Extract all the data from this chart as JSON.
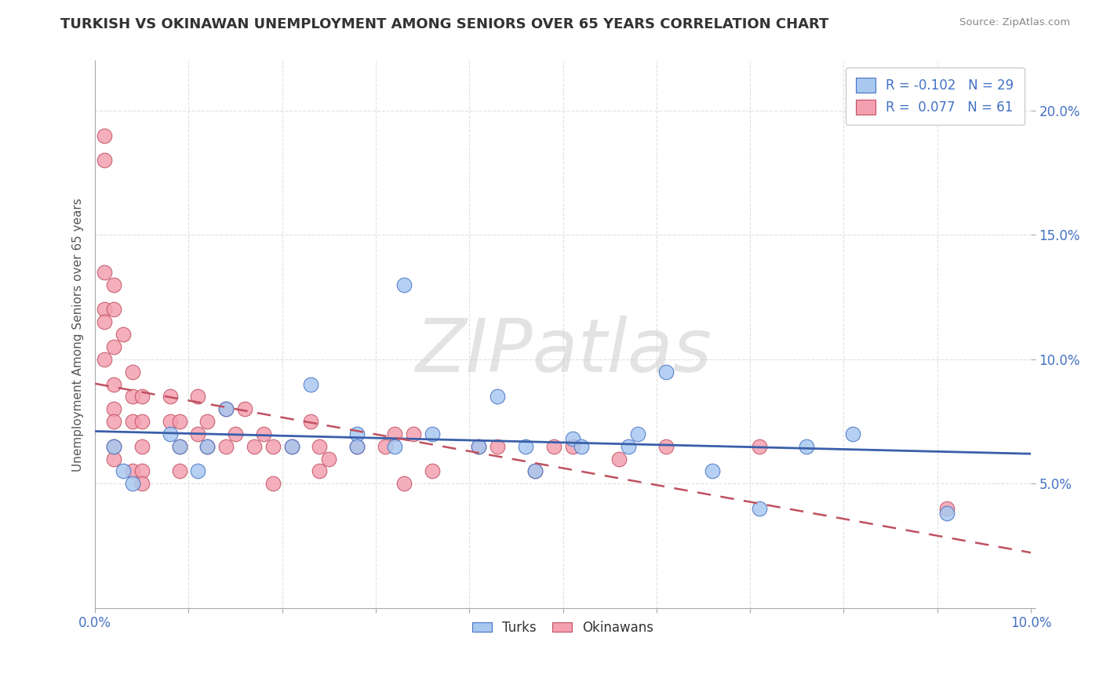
{
  "title": "TURKISH VS OKINAWAN UNEMPLOYMENT AMONG SENIORS OVER 65 YEARS CORRELATION CHART",
  "source": "Source: ZipAtlas.com",
  "ylabel": "Unemployment Among Seniors over 65 years",
  "xlim": [
    0.0,
    0.1
  ],
  "ylim": [
    0.0,
    0.22
  ],
  "xticks": [
    0.0,
    0.01,
    0.02,
    0.03,
    0.04,
    0.05,
    0.06,
    0.07,
    0.08,
    0.09,
    0.1
  ],
  "yticks": [
    0.0,
    0.05,
    0.1,
    0.15,
    0.2
  ],
  "xtick_labels_show": [
    "0.0%",
    "",
    "",
    "",
    "",
    "",
    "",
    "",
    "",
    "",
    "10.0%"
  ],
  "ytick_labels": [
    "",
    "5.0%",
    "10.0%",
    "15.0%",
    "20.0%"
  ],
  "turks_color": "#A8C8F0",
  "okinawans_color": "#F4A0B0",
  "turks_edge_color": "#4472C4",
  "okinawans_edge_color": "#C05060",
  "turks_line_color": "#3A5FAA",
  "okinawans_line_color": "#C05060",
  "legend_R_turks": "-0.102",
  "legend_N_turks": "29",
  "legend_R_okinawans": "0.077",
  "legend_N_okinawans": "61",
  "watermark": "ZIPatlas",
  "turks_x": [
    0.002,
    0.003,
    0.004,
    0.008,
    0.009,
    0.011,
    0.012,
    0.014,
    0.021,
    0.023,
    0.028,
    0.028,
    0.032,
    0.033,
    0.036,
    0.041,
    0.043,
    0.046,
    0.047,
    0.051,
    0.052,
    0.057,
    0.058,
    0.061,
    0.066,
    0.071,
    0.076,
    0.081,
    0.091
  ],
  "turks_y": [
    0.065,
    0.055,
    0.05,
    0.07,
    0.065,
    0.055,
    0.065,
    0.08,
    0.065,
    0.09,
    0.07,
    0.065,
    0.065,
    0.13,
    0.07,
    0.065,
    0.085,
    0.065,
    0.055,
    0.068,
    0.065,
    0.065,
    0.07,
    0.095,
    0.055,
    0.04,
    0.065,
    0.07,
    0.038
  ],
  "okinawans_x": [
    0.001,
    0.001,
    0.001,
    0.001,
    0.001,
    0.001,
    0.002,
    0.002,
    0.002,
    0.002,
    0.002,
    0.002,
    0.002,
    0.002,
    0.003,
    0.004,
    0.004,
    0.004,
    0.004,
    0.005,
    0.005,
    0.005,
    0.005,
    0.005,
    0.008,
    0.008,
    0.009,
    0.009,
    0.009,
    0.011,
    0.011,
    0.012,
    0.012,
    0.014,
    0.014,
    0.015,
    0.016,
    0.017,
    0.018,
    0.019,
    0.019,
    0.021,
    0.023,
    0.024,
    0.024,
    0.025,
    0.028,
    0.031,
    0.032,
    0.033,
    0.034,
    0.036,
    0.041,
    0.043,
    0.047,
    0.049,
    0.051,
    0.056,
    0.061,
    0.071,
    0.091
  ],
  "okinawans_y": [
    0.19,
    0.18,
    0.135,
    0.12,
    0.115,
    0.1,
    0.13,
    0.12,
    0.105,
    0.09,
    0.08,
    0.075,
    0.065,
    0.06,
    0.11,
    0.095,
    0.085,
    0.075,
    0.055,
    0.085,
    0.075,
    0.065,
    0.055,
    0.05,
    0.085,
    0.075,
    0.075,
    0.065,
    0.055,
    0.085,
    0.07,
    0.075,
    0.065,
    0.08,
    0.065,
    0.07,
    0.08,
    0.065,
    0.07,
    0.065,
    0.05,
    0.065,
    0.075,
    0.065,
    0.055,
    0.06,
    0.065,
    0.065,
    0.07,
    0.05,
    0.07,
    0.055,
    0.065,
    0.065,
    0.055,
    0.065,
    0.065,
    0.06,
    0.065,
    0.065,
    0.04
  ]
}
